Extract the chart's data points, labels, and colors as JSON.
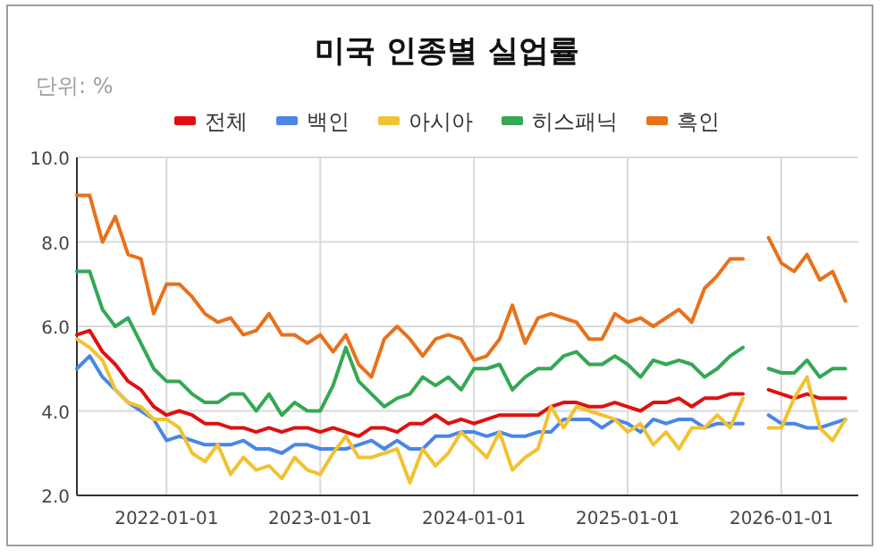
{
  "chart_data": {
    "type": "line",
    "title": "미국 인종별 실업률",
    "subtitle": "단위: %",
    "x": [
      "2021-06-01",
      "2021-07-01",
      "2021-08-01",
      "2021-09-01",
      "2021-10-01",
      "2021-11-01",
      "2021-12-01",
      "2022-01-01",
      "2022-02-01",
      "2022-03-01",
      "2022-04-01",
      "2022-05-01",
      "2022-06-01",
      "2022-07-01",
      "2022-08-01",
      "2022-09-01",
      "2022-10-01",
      "2022-11-01",
      "2022-12-01",
      "2023-01-01",
      "2023-02-01",
      "2023-03-01",
      "2023-04-01",
      "2023-05-01",
      "2023-06-01",
      "2023-07-01",
      "2023-08-01",
      "2023-09-01",
      "2023-10-01",
      "2023-11-01",
      "2023-12-01",
      "2024-01-01",
      "2024-02-01",
      "2024-03-01",
      "2024-04-01",
      "2024-05-01",
      "2024-06-01",
      "2024-07-01",
      "2024-08-01",
      "2024-09-01",
      "2024-10-01",
      "2024-11-01",
      "2024-12-01",
      "2025-01-01",
      "2025-02-01",
      "2025-03-01",
      "2025-04-01",
      "2025-05-01",
      "2025-06-01",
      "2025-07-01",
      "2025-08-01",
      "2025-09-01",
      "2025-10-01",
      "2025-11-01",
      "2025-12-01",
      "2026-01-01",
      "2026-02-01",
      "2026-03-01",
      "2026-04-01",
      "2026-05-01",
      "2026-06-01"
    ],
    "series": [
      {
        "name": "전체",
        "color": "#e01010",
        "values": [
          5.8,
          5.9,
          5.4,
          5.1,
          4.7,
          4.5,
          4.1,
          3.9,
          4.0,
          3.9,
          3.7,
          3.7,
          3.6,
          3.6,
          3.5,
          3.6,
          3.5,
          3.6,
          3.6,
          3.5,
          3.6,
          3.5,
          3.4,
          3.6,
          3.6,
          3.5,
          3.7,
          3.7,
          3.9,
          3.7,
          3.8,
          3.7,
          3.8,
          3.9,
          3.9,
          3.9,
          3.9,
          4.1,
          4.2,
          4.2,
          4.1,
          4.1,
          4.2,
          4.1,
          4.0,
          4.2,
          4.2,
          4.3,
          4.1,
          4.3,
          4.3,
          4.4,
          4.4,
          null,
          4.5,
          4.4,
          4.3,
          4.4,
          4.3,
          4.3,
          4.3
        ]
      },
      {
        "name": "백인",
        "color": "#4a86e8",
        "values": [
          5.0,
          5.3,
          4.8,
          4.5,
          4.2,
          4.0,
          3.8,
          3.3,
          3.4,
          3.3,
          3.2,
          3.2,
          3.2,
          3.3,
          3.1,
          3.1,
          3.0,
          3.2,
          3.2,
          3.1,
          3.1,
          3.1,
          3.2,
          3.3,
          3.1,
          3.3,
          3.1,
          3.1,
          3.4,
          3.4,
          3.5,
          3.5,
          3.4,
          3.5,
          3.4,
          3.4,
          3.5,
          3.5,
          3.8,
          3.8,
          3.8,
          3.6,
          3.8,
          3.7,
          3.5,
          3.8,
          3.7,
          3.8,
          3.8,
          3.6,
          3.7,
          3.7,
          3.7,
          null,
          3.9,
          3.7,
          3.7,
          3.6,
          3.6,
          3.7,
          3.8
        ]
      },
      {
        "name": "아시아",
        "color": "#f1c232",
        "values": [
          5.7,
          5.5,
          5.2,
          4.5,
          4.2,
          4.1,
          3.8,
          3.8,
          3.6,
          3.0,
          2.8,
          3.2,
          2.5,
          2.9,
          2.6,
          2.7,
          2.4,
          2.9,
          2.6,
          2.5,
          3.0,
          3.4,
          2.9,
          2.9,
          3.0,
          3.1,
          2.3,
          3.1,
          2.7,
          3.0,
          3.5,
          3.2,
          2.9,
          3.5,
          2.6,
          2.9,
          3.1,
          4.1,
          3.6,
          4.1,
          4.0,
          3.9,
          3.8,
          3.5,
          3.7,
          3.2,
          3.5,
          3.1,
          3.6,
          3.6,
          3.9,
          3.6,
          4.3,
          null,
          3.6,
          3.6,
          4.3,
          4.8,
          3.6,
          3.3,
          3.8
        ]
      },
      {
        "name": "히스패닉",
        "color": "#34a853",
        "values": [
          7.3,
          7.3,
          6.4,
          6.0,
          6.2,
          5.6,
          5.0,
          4.7,
          4.7,
          4.4,
          4.2,
          4.2,
          4.4,
          4.4,
          4.0,
          4.4,
          3.9,
          4.2,
          4.0,
          4.0,
          4.6,
          5.5,
          4.7,
          4.4,
          4.1,
          4.3,
          4.4,
          4.8,
          4.6,
          4.8,
          4.5,
          5.0,
          5.0,
          5.1,
          4.5,
          4.8,
          5.0,
          5.0,
          5.3,
          5.4,
          5.1,
          5.1,
          5.3,
          5.1,
          4.8,
          5.2,
          5.1,
          5.2,
          5.1,
          4.8,
          5.0,
          5.3,
          5.5,
          null,
          5.0,
          4.9,
          4.9,
          5.2,
          4.8,
          5.0,
          5.0
        ]
      },
      {
        "name": "흑인",
        "color": "#e8711a",
        "values": [
          9.1,
          9.1,
          8.0,
          8.6,
          7.7,
          7.6,
          6.3,
          7.0,
          7.0,
          6.7,
          6.3,
          6.1,
          6.2,
          5.8,
          5.9,
          6.3,
          5.8,
          5.8,
          5.6,
          5.8,
          5.4,
          5.8,
          5.1,
          4.8,
          5.7,
          6.0,
          5.7,
          5.3,
          5.7,
          5.8,
          5.7,
          5.2,
          5.3,
          5.7,
          6.5,
          5.6,
          6.2,
          6.3,
          6.2,
          6.1,
          5.7,
          5.7,
          6.3,
          6.1,
          6.2,
          6.0,
          6.2,
          6.4,
          6.1,
          6.9,
          7.2,
          7.6,
          7.6,
          null,
          8.1,
          7.5,
          7.3,
          7.7,
          7.1,
          7.3,
          6.6
        ]
      }
    ],
    "xlim": [
      "2021-06-01",
      "2026-07-01"
    ],
    "xticks": [
      "2022-01-01",
      "2023-01-01",
      "2024-01-01",
      "2025-01-01",
      "2026-01-01"
    ],
    "ylim": [
      2,
      10
    ],
    "yticks": [
      {
        "value": 2,
        "label": "2.0"
      },
      {
        "value": 4,
        "label": "4.0"
      },
      {
        "value": 6,
        "label": "6.0"
      },
      {
        "value": 8,
        "label": "8.0"
      },
      {
        "value": 10,
        "label": "10.0"
      }
    ],
    "grid": true,
    "legend": "top",
    "line_style": "solid"
  }
}
